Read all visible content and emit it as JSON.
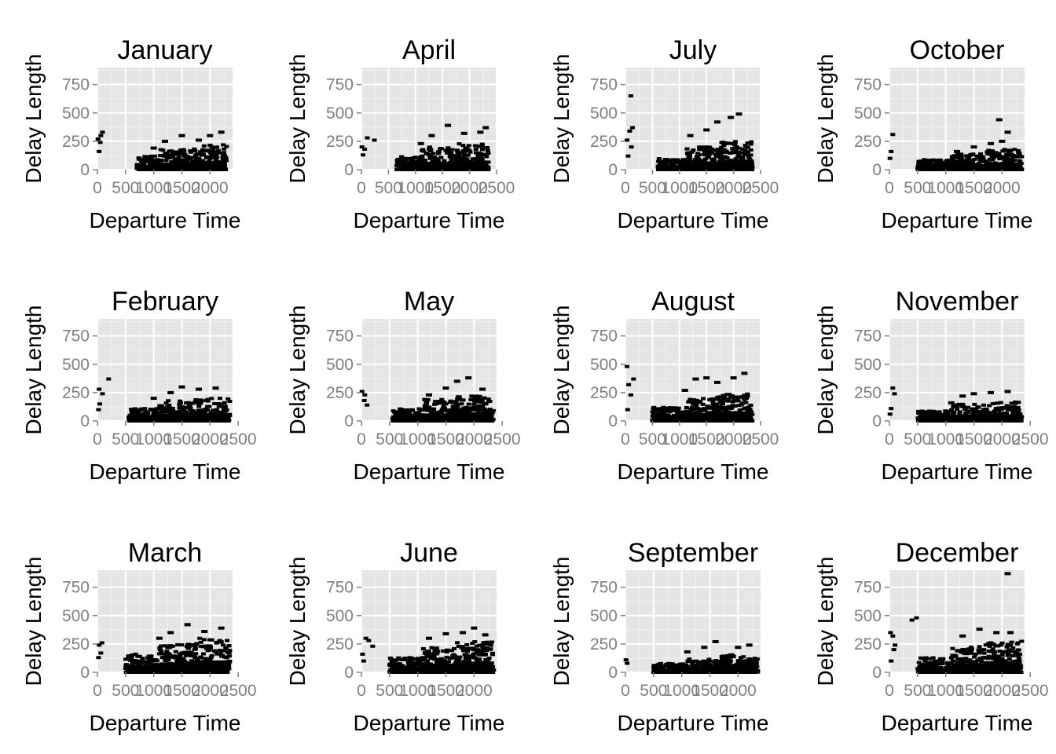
{
  "colors": {
    "panel_bg": "#E5E5E5",
    "grid_major": "#FFFFFF",
    "grid_minor": "#F2F2F2",
    "point": "#000000",
    "tick": "#7F7F7F",
    "hexfill": "#132B43"
  },
  "chart_data": [
    {
      "type": "scatter",
      "title": "January",
      "xlabel": "Departure Time",
      "ylabel": "Delay Length",
      "xlim": [
        0,
        2400
      ],
      "ylim": [
        0,
        900
      ],
      "xticks": [
        0,
        500,
        1000,
        1500,
        2000
      ],
      "xtick_labels": [
        "0",
        "500",
        "1000",
        "1500",
        "2000"
      ],
      "yticks": [
        0,
        250,
        500,
        750
      ],
      "ytick_labels": [
        "0",
        "250",
        "500",
        "750"
      ],
      "outliers": [
        [
          10,
          270
        ],
        [
          60,
          300
        ],
        [
          90,
          330
        ],
        [
          30,
          160
        ],
        [
          50,
          240
        ]
      ],
      "bands": [
        [
          700,
          1100,
          120
        ],
        [
          1100,
          1700,
          180
        ],
        [
          1700,
          2300,
          220
        ]
      ],
      "top": [
        [
          1000,
          190
        ],
        [
          1200,
          250
        ],
        [
          1500,
          300
        ],
        [
          1800,
          260
        ],
        [
          2000,
          300
        ],
        [
          2200,
          330
        ]
      ]
    },
    {
      "type": "scatter",
      "title": "April",
      "xlabel": "Departure Time",
      "ylabel": "Delay Length",
      "xlim": [
        0,
        2500
      ],
      "ylim": [
        0,
        900
      ],
      "xticks": [
        0,
        500,
        1000,
        1500,
        2000,
        2500
      ],
      "xtick_labels": [
        "0",
        "500",
        "1000",
        "1500",
        "2000",
        "2500"
      ],
      "yticks": [
        0,
        250,
        500,
        750
      ],
      "ytick_labels": [
        "0",
        "250",
        "500",
        "750"
      ],
      "outliers": [
        [
          10,
          200
        ],
        [
          60,
          180
        ],
        [
          110,
          280
        ],
        [
          30,
          130
        ],
        [
          240,
          260
        ]
      ],
      "bands": [
        [
          650,
          1100,
          120
        ],
        [
          1100,
          1700,
          200
        ],
        [
          1700,
          2350,
          230
        ]
      ],
      "top": [
        [
          1100,
          230
        ],
        [
          1300,
          300
        ],
        [
          1600,
          390
        ],
        [
          1900,
          320
        ],
        [
          2200,
          330
        ],
        [
          2300,
          370
        ]
      ]
    },
    {
      "type": "scatter",
      "title": "July",
      "xlabel": "Departure Time",
      "ylabel": "Delay Length",
      "xlim": [
        0,
        2500
      ],
      "ylim": [
        0,
        900
      ],
      "xticks": [
        0,
        500,
        1000,
        1500,
        2000,
        2500
      ],
      "xtick_labels": [
        "0",
        "500",
        "1000",
        "1500",
        "2000",
        "2500"
      ],
      "yticks": [
        0,
        250,
        500,
        750
      ],
      "ytick_labels": [
        "0",
        "250",
        "500",
        "750"
      ],
      "outliers": [
        [
          100,
          650
        ],
        [
          30,
          260
        ],
        [
          80,
          340
        ],
        [
          130,
          370
        ],
        [
          50,
          120
        ],
        [
          110,
          200
        ]
      ],
      "bands": [
        [
          600,
          1100,
          100
        ],
        [
          1100,
          1700,
          200
        ],
        [
          1700,
          2350,
          250
        ]
      ],
      "top": [
        [
          1200,
          300
        ],
        [
          1500,
          350
        ],
        [
          1700,
          420
        ],
        [
          1950,
          460
        ],
        [
          2100,
          490
        ]
      ]
    },
    {
      "type": "scatter",
      "title": "October",
      "xlabel": "Departure Time",
      "ylabel": "Delay Length",
      "xlim": [
        0,
        2400
      ],
      "ylim": [
        0,
        900
      ],
      "xticks": [
        0,
        500,
        1000,
        1500,
        2000
      ],
      "xtick_labels": [
        "0",
        "500",
        "1000",
        "1500",
        "2000"
      ],
      "yticks": [
        0,
        250,
        500,
        750
      ],
      "ytick_labels": [
        "0",
        "250",
        "500",
        "750"
      ],
      "outliers": [
        [
          60,
          310
        ],
        [
          30,
          160
        ],
        [
          10,
          100
        ]
      ],
      "bands": [
        [
          500,
          1100,
          90
        ],
        [
          1100,
          1700,
          140
        ],
        [
          1700,
          2350,
          180
        ]
      ],
      "top": [
        [
          1200,
          160
        ],
        [
          1500,
          200
        ],
        [
          1800,
          230
        ],
        [
          2000,
          250
        ],
        [
          2100,
          330
        ],
        [
          1950,
          440
        ]
      ]
    },
    {
      "type": "scatter",
      "title": "February",
      "xlabel": "Departure Time",
      "ylabel": "Delay Length",
      "xlim": [
        0,
        2400
      ],
      "ylim": [
        0,
        900
      ],
      "xticks": [
        0,
        500,
        1000,
        1500,
        2000,
        2500
      ],
      "xtick_labels": [
        "0",
        "500",
        "1000",
        "1500",
        "2000",
        "2500"
      ],
      "yticks": [
        0,
        250,
        500,
        750
      ],
      "ytick_labels": [
        "0",
        "250",
        "500",
        "750"
      ],
      "outliers": [
        [
          30,
          280
        ],
        [
          90,
          240
        ],
        [
          200,
          370
        ],
        [
          20,
          100
        ],
        [
          40,
          150
        ]
      ],
      "bands": [
        [
          550,
          1100,
          110
        ],
        [
          1100,
          1700,
          180
        ],
        [
          1700,
          2350,
          200
        ]
      ],
      "top": [
        [
          1000,
          200
        ],
        [
          1300,
          250
        ],
        [
          1500,
          300
        ],
        [
          1800,
          280
        ],
        [
          2100,
          290
        ]
      ]
    },
    {
      "type": "scatter",
      "title": "May",
      "xlabel": "Departure Time",
      "ylabel": "Delay Length",
      "xlim": [
        0,
        2400
      ],
      "ylim": [
        0,
        900
      ],
      "xticks": [
        0,
        500,
        1000,
        1500,
        2000,
        2500
      ],
      "xtick_labels": [
        "0",
        "500",
        "1000",
        "1500",
        "2000",
        "2500"
      ],
      "yticks": [
        0,
        250,
        500,
        750
      ],
      "ytick_labels": [
        "0",
        "250",
        "500",
        "750"
      ],
      "outliers": [
        [
          10,
          260
        ],
        [
          60,
          230
        ],
        [
          100,
          140
        ],
        [
          50,
          180
        ]
      ],
      "bands": [
        [
          550,
          1100,
          110
        ],
        [
          1100,
          1700,
          190
        ],
        [
          1700,
          2350,
          220
        ]
      ],
      "top": [
        [
          1200,
          230
        ],
        [
          1500,
          290
        ],
        [
          1700,
          350
        ],
        [
          1900,
          380
        ],
        [
          2150,
          280
        ]
      ]
    },
    {
      "type": "scatter",
      "title": "August",
      "xlabel": "Departure Time",
      "ylabel": "Delay Length",
      "xlim": [
        0,
        2500
      ],
      "ylim": [
        0,
        900
      ],
      "xticks": [
        0,
        500,
        1000,
        1500,
        2000,
        2500
      ],
      "xtick_labels": [
        "0",
        "500",
        "1000",
        "1500",
        "2000",
        "2500"
      ],
      "yticks": [
        0,
        250,
        500,
        750
      ],
      "ytick_labels": [
        "0",
        "250",
        "500",
        "750"
      ],
      "outliers": [
        [
          30,
          480
        ],
        [
          60,
          320
        ],
        [
          150,
          370
        ],
        [
          40,
          100
        ],
        [
          100,
          230
        ]
      ],
      "bands": [
        [
          500,
          1100,
          120
        ],
        [
          1100,
          1700,
          200
        ],
        [
          1700,
          2350,
          240
        ]
      ],
      "top": [
        [
          1100,
          270
        ],
        [
          1300,
          370
        ],
        [
          1500,
          380
        ],
        [
          1700,
          340
        ],
        [
          2000,
          380
        ],
        [
          2200,
          420
        ]
      ]
    },
    {
      "type": "scatter",
      "title": "November",
      "xlabel": "Departure Time",
      "ylabel": "Delay Length",
      "xlim": [
        0,
        2400
      ],
      "ylim": [
        0,
        900
      ],
      "xticks": [
        0,
        500,
        1000,
        1500,
        2000,
        2500
      ],
      "xtick_labels": [
        "0",
        "500",
        "1000",
        "1500",
        "2000",
        "2500"
      ],
      "yticks": [
        0,
        250,
        500,
        750
      ],
      "ytick_labels": [
        "0",
        "250",
        "500",
        "750"
      ],
      "outliers": [
        [
          60,
          290
        ],
        [
          30,
          110
        ],
        [
          90,
          240
        ],
        [
          10,
          60
        ]
      ],
      "bands": [
        [
          500,
          1100,
          90
        ],
        [
          1100,
          1700,
          150
        ],
        [
          1700,
          2350,
          170
        ]
      ],
      "top": [
        [
          1100,
          160
        ],
        [
          1300,
          220
        ],
        [
          1500,
          240
        ],
        [
          1800,
          250
        ],
        [
          2100,
          260
        ]
      ]
    },
    {
      "type": "scatter",
      "title": "March",
      "xlabel": "Departure Time",
      "ylabel": "Delay Length",
      "xlim": [
        0,
        2400
      ],
      "ylim": [
        0,
        900
      ],
      "xticks": [
        0,
        500,
        1000,
        1500,
        2000,
        2500
      ],
      "xtick_labels": [
        "0",
        "500",
        "1000",
        "1500",
        "2000",
        "2500"
      ],
      "yticks": [
        0,
        250,
        500,
        750
      ],
      "ytick_labels": [
        "0",
        "250",
        "500",
        "750"
      ],
      "outliers": [
        [
          30,
          240
        ],
        [
          80,
          260
        ],
        [
          20,
          130
        ],
        [
          60,
          170
        ]
      ],
      "bands": [
        [
          500,
          1100,
          160
        ],
        [
          1100,
          1700,
          250
        ],
        [
          1700,
          2350,
          300
        ]
      ],
      "top": [
        [
          1100,
          300
        ],
        [
          1300,
          350
        ],
        [
          1600,
          420
        ],
        [
          1900,
          360
        ],
        [
          2200,
          390
        ]
      ]
    },
    {
      "type": "scatter",
      "title": "June",
      "xlabel": "Departure Time",
      "ylabel": "Delay Length",
      "xlim": [
        0,
        2400
      ],
      "ylim": [
        0,
        900
      ],
      "xticks": [
        0,
        500,
        1000,
        1500,
        2000
      ],
      "xtick_labels": [
        "0",
        "500",
        "1000",
        "1500",
        "2000"
      ],
      "yticks": [
        0,
        250,
        500,
        750
      ],
      "ytick_labels": [
        "0",
        "250",
        "500",
        "750"
      ],
      "outliers": [
        [
          20,
          160
        ],
        [
          80,
          300
        ],
        [
          130,
          280
        ],
        [
          40,
          100
        ],
        [
          200,
          230
        ]
      ],
      "bands": [
        [
          500,
          1100,
          130
        ],
        [
          1100,
          1700,
          220
        ],
        [
          1700,
          2350,
          270
        ]
      ],
      "top": [
        [
          1200,
          300
        ],
        [
          1500,
          340
        ],
        [
          1800,
          350
        ],
        [
          2000,
          390
        ],
        [
          2200,
          330
        ]
      ]
    },
    {
      "type": "scatter",
      "title": "September",
      "xlabel": "Departure Time",
      "ylabel": "Delay Length",
      "xlim": [
        0,
        2400
      ],
      "ylim": [
        0,
        900
      ],
      "xticks": [
        0,
        500,
        1000,
        1500,
        2000
      ],
      "xtick_labels": [
        "0",
        "500",
        "1000",
        "1500",
        "2000"
      ],
      "yticks": [
        0,
        250,
        500,
        750
      ],
      "ytick_labels": [
        "0",
        "250",
        "500",
        "750"
      ],
      "outliers": [
        [
          10,
          110
        ],
        [
          30,
          80
        ]
      ],
      "bands": [
        [
          500,
          1100,
          80
        ],
        [
          1100,
          1700,
          120
        ],
        [
          1700,
          2350,
          160
        ]
      ],
      "top": [
        [
          1100,
          180
        ],
        [
          1400,
          220
        ],
        [
          1600,
          270
        ],
        [
          2000,
          220
        ],
        [
          2200,
          240
        ]
      ]
    },
    {
      "type": "scatter",
      "title": "December",
      "xlabel": "Departure Time",
      "ylabel": "Delay Length",
      "xlim": [
        0,
        2400
      ],
      "ylim": [
        0,
        900
      ],
      "xticks": [
        0,
        500,
        1000,
        1500,
        2000,
        2500
      ],
      "xtick_labels": [
        "0",
        "500",
        "1000",
        "1500",
        "2000",
        "2500"
      ],
      "yticks": [
        0,
        250,
        500,
        750
      ],
      "ytick_labels": [
        "0",
        "250",
        "500",
        "750"
      ],
      "outliers": [
        [
          20,
          350
        ],
        [
          60,
          320
        ],
        [
          400,
          460
        ],
        [
          480,
          480
        ],
        [
          80,
          200
        ],
        [
          30,
          100
        ],
        [
          100,
          240
        ]
      ],
      "bands": [
        [
          500,
          1100,
          130
        ],
        [
          1100,
          1700,
          230
        ],
        [
          1700,
          2350,
          280
        ]
      ],
      "top": [
        [
          1300,
          320
        ],
        [
          1600,
          380
        ],
        [
          1900,
          350
        ],
        [
          2150,
          350
        ],
        [
          2100,
          870
        ]
      ]
    }
  ]
}
